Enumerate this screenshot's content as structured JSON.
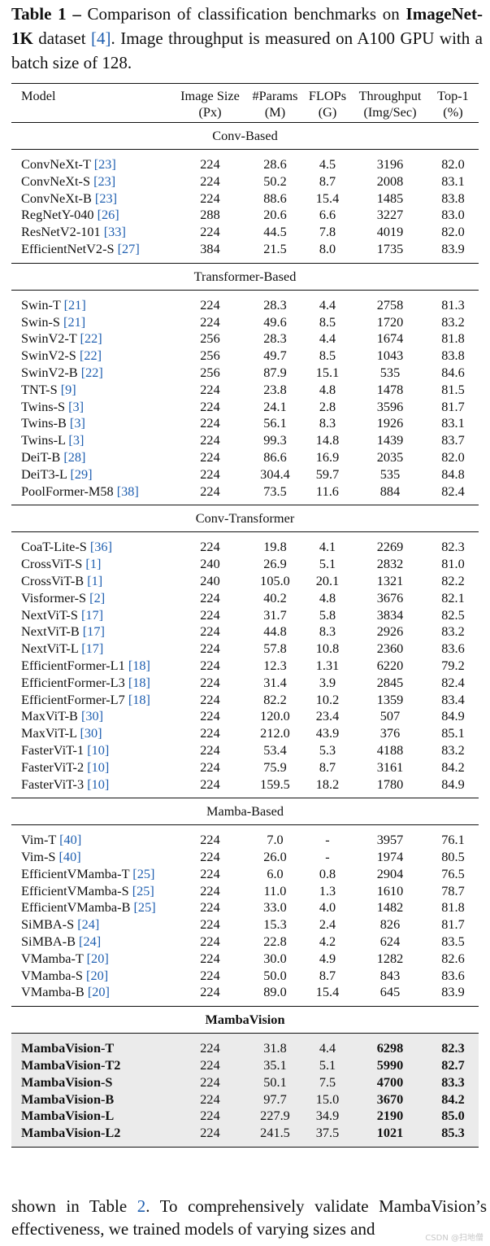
{
  "caption": {
    "label": "Table 1 –",
    "text1": " Comparison of classification benchmarks on ",
    "dataset": "ImageNet-1K",
    "text2": " dataset ",
    "cite": "[4]",
    "text3": ". Image throughput is measured on A100 GPU with a batch size of 128."
  },
  "header": {
    "model": "Model",
    "image_size": [
      "Image Size",
      "(Px)"
    ],
    "params": [
      "#Params",
      "(M)"
    ],
    "flops": [
      "FLOPs",
      "(G)"
    ],
    "throughput": [
      "Throughput",
      "(Img/Sec)"
    ],
    "top1": [
      "Top-1",
      "(%)"
    ]
  },
  "sections": [
    {
      "title": "Conv-Based",
      "rows": [
        {
          "name": "ConvNeXt-T ",
          "cite": "[23]",
          "size": "224",
          "params": "28.6",
          "flops": "4.5",
          "thr": "3196",
          "top1": "82.0"
        },
        {
          "name": "ConvNeXt-S ",
          "cite": "[23]",
          "size": "224",
          "params": "50.2",
          "flops": "8.7",
          "thr": "2008",
          "top1": "83.1"
        },
        {
          "name": "ConvNeXt-B ",
          "cite": "[23]",
          "size": "224",
          "params": "88.6",
          "flops": "15.4",
          "thr": "1485",
          "top1": "83.8"
        },
        {
          "name": "RegNetY-040 ",
          "cite": "[26]",
          "size": "288",
          "params": "20.6",
          "flops": "6.6",
          "thr": "3227",
          "top1": "83.0"
        },
        {
          "name": "ResNetV2-101 ",
          "cite": "[33]",
          "size": "224",
          "params": "44.5",
          "flops": "7.8",
          "thr": "4019",
          "top1": "82.0"
        },
        {
          "name": "EfficientNetV2-S ",
          "cite": "[27]",
          "size": "384",
          "params": "21.5",
          "flops": "8.0",
          "thr": "1735",
          "top1": "83.9"
        }
      ]
    },
    {
      "title": "Transformer-Based",
      "rows": [
        {
          "name": "Swin-T ",
          "cite": "[21]",
          "size": "224",
          "params": "28.3",
          "flops": "4.4",
          "thr": "2758",
          "top1": "81.3"
        },
        {
          "name": "Swin-S ",
          "cite": "[21]",
          "size": "224",
          "params": "49.6",
          "flops": "8.5",
          "thr": "1720",
          "top1": "83.2"
        },
        {
          "name": "SwinV2-T ",
          "cite": "[22]",
          "size": "256",
          "params": "28.3",
          "flops": "4.4",
          "thr": "1674",
          "top1": "81.8"
        },
        {
          "name": "SwinV2-S ",
          "cite": "[22]",
          "size": "256",
          "params": "49.7",
          "flops": "8.5",
          "thr": "1043",
          "top1": "83.8"
        },
        {
          "name": "SwinV2-B ",
          "cite": "[22]",
          "size": "256",
          "params": "87.9",
          "flops": "15.1",
          "thr": "535",
          "top1": "84.6"
        },
        {
          "name": "TNT-S ",
          "cite": "[9]",
          "size": "224",
          "params": "23.8",
          "flops": "4.8",
          "thr": "1478",
          "top1": "81.5"
        },
        {
          "name": "Twins-S ",
          "cite": "[3]",
          "size": "224",
          "params": "24.1",
          "flops": "2.8",
          "thr": "3596",
          "top1": "81.7"
        },
        {
          "name": "Twins-B ",
          "cite": "[3]",
          "size": "224",
          "params": "56.1",
          "flops": "8.3",
          "thr": "1926",
          "top1": "83.1"
        },
        {
          "name": "Twins-L ",
          "cite": "[3]",
          "size": "224",
          "params": "99.3",
          "flops": "14.8",
          "thr": "1439",
          "top1": "83.7"
        },
        {
          "name": "DeiT-B ",
          "cite": "[28]",
          "size": "224",
          "params": "86.6",
          "flops": "16.9",
          "thr": "2035",
          "top1": "82.0"
        },
        {
          "name": "DeiT3-L ",
          "cite": "[29]",
          "size": "224",
          "params": "304.4",
          "flops": "59.7",
          "thr": "535",
          "top1": "84.8"
        },
        {
          "name": "PoolFormer-M58 ",
          "cite": "[38]",
          "size": "224",
          "params": "73.5",
          "flops": "11.6",
          "thr": "884",
          "top1": "82.4"
        }
      ]
    },
    {
      "title": "Conv-Transformer",
      "rows": [
        {
          "name": "CoaT-Lite-S ",
          "cite": "[36]",
          "size": "224",
          "params": "19.8",
          "flops": "4.1",
          "thr": "2269",
          "top1": "82.3"
        },
        {
          "name": "CrossViT-S ",
          "cite": "[1]",
          "size": "240",
          "params": "26.9",
          "flops": "5.1",
          "thr": "2832",
          "top1": "81.0"
        },
        {
          "name": "CrossViT-B ",
          "cite": "[1]",
          "size": "240",
          "params": "105.0",
          "flops": "20.1",
          "thr": "1321",
          "top1": "82.2"
        },
        {
          "name": "Visformer-S ",
          "cite": "[2]",
          "size": "224",
          "params": "40.2",
          "flops": "4.8",
          "thr": "3676",
          "top1": "82.1"
        },
        {
          "name": "NextViT-S ",
          "cite": "[17]",
          "size": "224",
          "params": "31.7",
          "flops": "5.8",
          "thr": "3834",
          "top1": "82.5"
        },
        {
          "name": "NextViT-B ",
          "cite": "[17]",
          "size": "224",
          "params": "44.8",
          "flops": "8.3",
          "thr": "2926",
          "top1": "83.2"
        },
        {
          "name": "NextViT-L ",
          "cite": "[17]",
          "size": "224",
          "params": "57.8",
          "flops": "10.8",
          "thr": "2360",
          "top1": "83.6"
        },
        {
          "name": "EfficientFormer-L1 ",
          "cite": "[18]",
          "size": "224",
          "params": "12.3",
          "flops": "1.31",
          "thr": "6220",
          "top1": "79.2"
        },
        {
          "name": "EfficientFormer-L3 ",
          "cite": "[18]",
          "size": "224",
          "params": "31.4",
          "flops": "3.9",
          "thr": "2845",
          "top1": "82.4"
        },
        {
          "name": "EfficientFormer-L7 ",
          "cite": "[18]",
          "size": "224",
          "params": "82.2",
          "flops": "10.2",
          "thr": "1359",
          "top1": "83.4"
        },
        {
          "name": "MaxViT-B ",
          "cite": "[30]",
          "size": "224",
          "params": "120.0",
          "flops": "23.4",
          "thr": "507",
          "top1": "84.9"
        },
        {
          "name": "MaxViT-L ",
          "cite": "[30]",
          "size": "224",
          "params": "212.0",
          "flops": "43.9",
          "thr": "376",
          "top1": "85.1"
        },
        {
          "name": "FasterViT-1 ",
          "cite": "[10]",
          "size": "224",
          "params": "53.4",
          "flops": "5.3",
          "thr": "4188",
          "top1": "83.2"
        },
        {
          "name": "FasterViT-2 ",
          "cite": "[10]",
          "size": "224",
          "params": "75.9",
          "flops": "8.7",
          "thr": "3161",
          "top1": "84.2"
        },
        {
          "name": "FasterViT-3 ",
          "cite": "[10]",
          "size": "224",
          "params": "159.5",
          "flops": "18.2",
          "thr": "1780",
          "top1": "84.9"
        }
      ]
    },
    {
      "title": "Mamba-Based",
      "rows": [
        {
          "name": "Vim-T ",
          "cite": "[40]",
          "size": "224",
          "params": "7.0",
          "flops": "-",
          "thr": "3957",
          "top1": "76.1"
        },
        {
          "name": "Vim-S ",
          "cite": "[40]",
          "size": "224",
          "params": "26.0",
          "flops": "-",
          "thr": "1974",
          "top1": "80.5"
        },
        {
          "name": "EfficientVMamba-T ",
          "cite": "[25]",
          "size": "224",
          "params": "6.0",
          "flops": "0.8",
          "thr": "2904",
          "top1": "76.5"
        },
        {
          "name": "EfficientVMamba-S ",
          "cite": "[25]",
          "size": "224",
          "params": "11.0",
          "flops": "1.3",
          "thr": "1610",
          "top1": "78.7"
        },
        {
          "name": "EfficientVMamba-B ",
          "cite": "[25]",
          "size": "224",
          "params": "33.0",
          "flops": "4.0",
          "thr": "1482",
          "top1": "81.8"
        },
        {
          "name": "SiMBA-S ",
          "cite": "[24]",
          "size": "224",
          "params": "15.3",
          "flops": "2.4",
          "thr": "826",
          "top1": "81.7"
        },
        {
          "name": "SiMBA-B ",
          "cite": "[24]",
          "size": "224",
          "params": "22.8",
          "flops": "4.2",
          "thr": "624",
          "top1": "83.5"
        },
        {
          "name": "VMamba-T ",
          "cite": "[20]",
          "size": "224",
          "params": "30.0",
          "flops": "4.9",
          "thr": "1282",
          "top1": "82.6"
        },
        {
          "name": "VMamba-S ",
          "cite": "[20]",
          "size": "224",
          "params": "50.0",
          "flops": "8.7",
          "thr": "843",
          "top1": "83.6"
        },
        {
          "name": "VMamba-B ",
          "cite": "[20]",
          "size": "224",
          "params": "89.0",
          "flops": "15.4",
          "thr": "645",
          "top1": "83.9"
        }
      ]
    },
    {
      "title": "MambaVision",
      "bold": true,
      "highlight": true,
      "rows": [
        {
          "name": "MambaVision-T",
          "cite": "",
          "size": "224",
          "params": "31.8",
          "flops": "4.4",
          "thr": "6298",
          "top1": "82.3"
        },
        {
          "name": "MambaVision-T2",
          "cite": "",
          "size": "224",
          "params": "35.1",
          "flops": "5.1",
          "thr": "5990",
          "top1": "82.7"
        },
        {
          "name": "MambaVision-S",
          "cite": "",
          "size": "224",
          "params": "50.1",
          "flops": "7.5",
          "thr": "4700",
          "top1": "83.3"
        },
        {
          "name": "MambaVision-B",
          "cite": "",
          "size": "224",
          "params": "97.7",
          "flops": "15.0",
          "thr": "3670",
          "top1": "84.2"
        },
        {
          "name": "MambaVision-L",
          "cite": "",
          "size": "224",
          "params": "227.9",
          "flops": "34.9",
          "thr": "2190",
          "top1": "85.0"
        },
        {
          "name": "MambaVision-L2",
          "cite": "",
          "size": "224",
          "params": "241.5",
          "flops": "37.5",
          "thr": "1021",
          "top1": "85.3"
        }
      ]
    }
  ],
  "paragraph": {
    "text1": "shown in Table ",
    "ref": "2",
    "text2": ". To comprehensively validate MambaVision’s effectiveness, we trained models of varying sizes and"
  },
  "watermark": "CSDN @扫地僧"
}
